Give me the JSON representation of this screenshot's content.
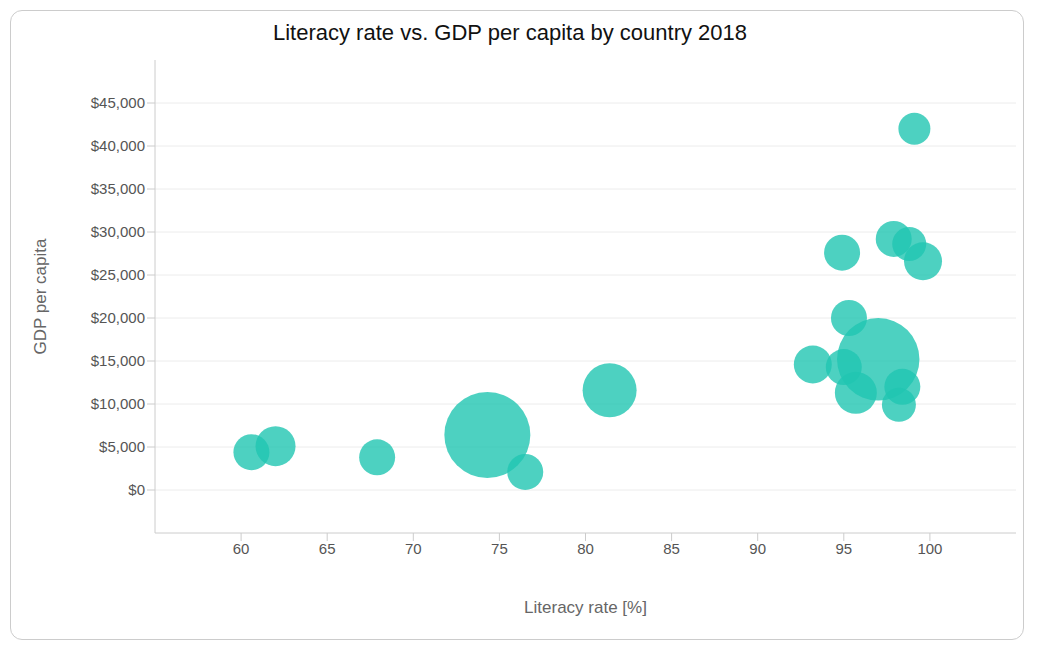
{
  "chart_data": {
    "type": "bubble",
    "title": "Literacy rate vs. GDP per capita by country 2018",
    "x_label": "Literacy rate [%]",
    "y_label": "GDP per capita",
    "x": [
      60.6,
      62.0,
      67.9,
      74.3,
      76.5,
      81.4,
      93.2,
      94.9,
      95.3,
      95.0,
      95.7,
      97.0,
      97.9,
      98.8,
      99.6,
      98.4,
      98.2,
      99.1
    ],
    "values": [
      4400,
      5100,
      3800,
      6400,
      2100,
      11600,
      14600,
      27600,
      20000,
      14300,
      11300,
      15200,
      29200,
      28600,
      26600,
      12000,
      9900,
      42000
    ],
    "sizes": [
      324,
      400,
      324,
      1850,
      324,
      729,
      361,
      324,
      324,
      324,
      441,
      1700,
      324,
      289,
      361,
      324,
      289,
      256
    ],
    "color": "#20c5b2",
    "xlim": [
      55,
      105
    ],
    "xticks": [
      60,
      65,
      70,
      75,
      80,
      85,
      90,
      95,
      100
    ],
    "ylim": [
      -5000,
      50000
    ],
    "yticks": [
      {
        "value": 0,
        "label": "$0"
      },
      {
        "value": 5000,
        "label": "$5,000"
      },
      {
        "value": 10000,
        "label": "$10,000"
      },
      {
        "value": 15000,
        "label": "$15,000"
      },
      {
        "value": 20000,
        "label": "$20,000"
      },
      {
        "value": 25000,
        "label": "$25,000"
      },
      {
        "value": 30000,
        "label": "$30,000"
      },
      {
        "value": 35000,
        "label": "$35,000"
      },
      {
        "value": 40000,
        "label": "$40,000"
      },
      {
        "value": 45000,
        "label": "$45,000"
      }
    ],
    "grid": true
  }
}
